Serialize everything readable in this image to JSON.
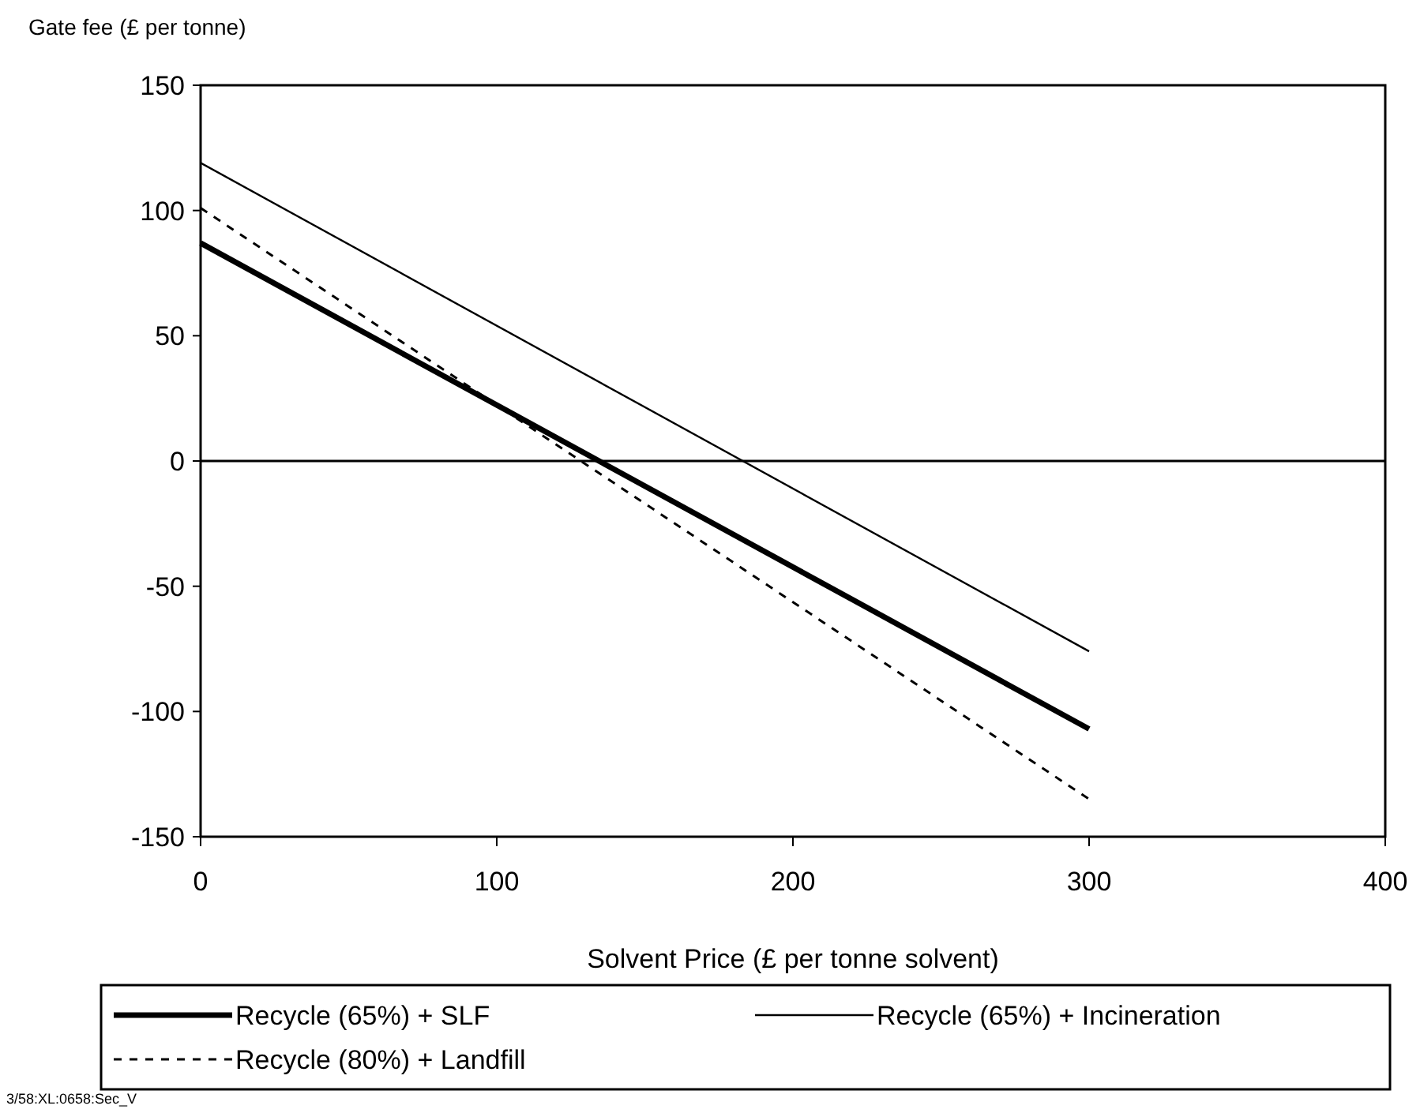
{
  "chart_data": {
    "type": "line",
    "xlabel": "Solvent Price (£ per tonne solvent)",
    "ylabel": "Gate fee (£ per tonne)",
    "x": [
      0,
      300
    ],
    "series": [
      {
        "name": "Recycle (65%) + SLF",
        "color": "#000000",
        "values": [
          87,
          -107
        ],
        "line_style": "solid"
      },
      {
        "name": "Recycle (65%) + Incineration",
        "color": "#000000",
        "values": [
          119,
          -76
        ],
        "line_style": "solid"
      },
      {
        "name": "Recycle (80%) + Landfill",
        "color": "#000000",
        "values": [
          101,
          -135
        ],
        "line_style": "dashed"
      }
    ],
    "xlim": [
      0,
      400
    ],
    "xticks": [
      0,
      100,
      200,
      300,
      400
    ],
    "ylim": [
      -150,
      150
    ],
    "yticks": [
      -150,
      -100,
      -50,
      0,
      50,
      100,
      150
    ],
    "ref_lines": [
      {
        "axis": "y",
        "value": 0,
        "label": null
      }
    ],
    "legend": "bottom",
    "grid": false,
    "annotations": [
      "3/58:XL:0658:Sec_V"
    ]
  }
}
